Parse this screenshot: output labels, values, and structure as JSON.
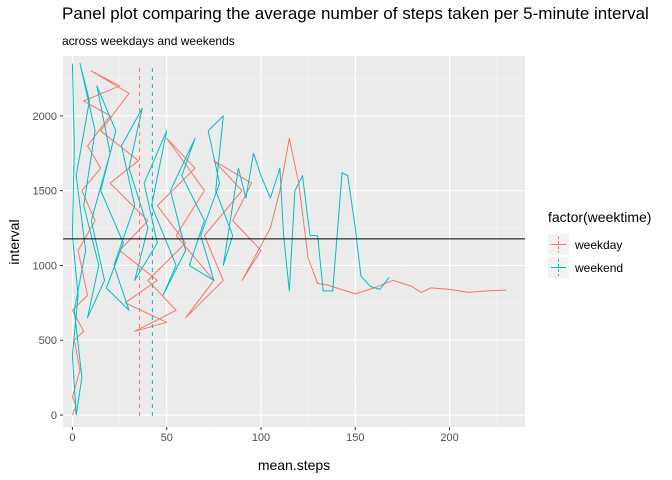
{
  "chart_data": {
    "type": "line",
    "title": "Panel plot comparing the average number of steps taken per 5-minute interval",
    "subtitle": "across weekdays and weekends",
    "xlabel": "mean.steps",
    "ylabel": "interval",
    "xlim": [
      -5,
      240
    ],
    "ylim": [
      -80,
      2400
    ],
    "x_ticks": [
      0,
      50,
      100,
      150,
      200
    ],
    "y_ticks": [
      0,
      500,
      1000,
      1500,
      2000
    ],
    "grid": true,
    "legend": {
      "title": "factor(weektime)",
      "placement": "right"
    },
    "hline": 1177.5,
    "series": [
      {
        "name": "weekday",
        "color": "#F8766D",
        "mean_vline": 35.6,
        "points": [
          [
            0,
            0
          ],
          [
            2,
            60
          ],
          [
            0,
            120
          ],
          [
            4,
            300
          ],
          [
            1,
            500
          ],
          [
            6,
            560
          ],
          [
            0,
            700
          ],
          [
            8,
            800
          ],
          [
            3,
            1100
          ],
          [
            12,
            1300
          ],
          [
            5,
            1500
          ],
          [
            15,
            1650
          ],
          [
            8,
            1800
          ],
          [
            20,
            2000
          ],
          [
            6,
            2100
          ],
          [
            25,
            2200
          ],
          [
            10,
            2300
          ],
          [
            30,
            2150
          ],
          [
            15,
            1900
          ],
          [
            35,
            1700
          ],
          [
            20,
            1550
          ],
          [
            40,
            1300
          ],
          [
            25,
            1100
          ],
          [
            45,
            900
          ],
          [
            28,
            750
          ],
          [
            50,
            620
          ],
          [
            33,
            560
          ],
          [
            55,
            700
          ],
          [
            40,
            900
          ],
          [
            60,
            1150
          ],
          [
            45,
            1400
          ],
          [
            65,
            1650
          ],
          [
            50,
            1850
          ],
          [
            70,
            1500
          ],
          [
            55,
            1200
          ],
          [
            75,
            900
          ],
          [
            60,
            650
          ],
          [
            80,
            900
          ],
          [
            70,
            1200
          ],
          [
            90,
            1500
          ],
          [
            75,
            1700
          ],
          [
            95,
            1550
          ],
          [
            85,
            1300
          ],
          [
            100,
            1100
          ],
          [
            90,
            900
          ],
          [
            105,
            1250
          ],
          [
            110,
            1500
          ],
          [
            115,
            1850
          ],
          [
            120,
            1550
          ],
          [
            125,
            1050
          ],
          [
            130,
            880
          ],
          [
            135,
            870
          ],
          [
            140,
            850
          ],
          [
            150,
            810
          ],
          [
            160,
            850
          ],
          [
            170,
            900
          ],
          [
            180,
            860
          ],
          [
            185,
            820
          ],
          [
            190,
            850
          ],
          [
            200,
            840
          ],
          [
            210,
            820
          ],
          [
            220,
            830
          ],
          [
            230,
            835
          ]
        ]
      },
      {
        "name": "weekend",
        "color": "#00BFC4",
        "mean_vline": 42.4,
        "points": [
          [
            0,
            2350
          ],
          [
            1,
            1800
          ],
          [
            0,
            1200
          ],
          [
            3,
            800
          ],
          [
            0,
            400
          ],
          [
            2,
            0
          ],
          [
            5,
            250
          ],
          [
            1,
            700
          ],
          [
            7,
            1100
          ],
          [
            2,
            1600
          ],
          [
            9,
            2100
          ],
          [
            4,
            2350
          ],
          [
            12,
            1900
          ],
          [
            6,
            1400
          ],
          [
            14,
            1000
          ],
          [
            8,
            650
          ],
          [
            17,
            900
          ],
          [
            10,
            1300
          ],
          [
            20,
            1750
          ],
          [
            13,
            2200
          ],
          [
            23,
            1900
          ],
          [
            15,
            1500
          ],
          [
            27,
            1150
          ],
          [
            18,
            850
          ],
          [
            30,
            700
          ],
          [
            22,
            1000
          ],
          [
            33,
            1400
          ],
          [
            26,
            1800
          ],
          [
            37,
            2050
          ],
          [
            30,
            1650
          ],
          [
            40,
            1250
          ],
          [
            33,
            900
          ],
          [
            45,
            1150
          ],
          [
            38,
            1550
          ],
          [
            50,
            1900
          ],
          [
            42,
            1400
          ],
          [
            55,
            1000
          ],
          [
            48,
            800
          ],
          [
            60,
            1100
          ],
          [
            52,
            1500
          ],
          [
            65,
            1850
          ],
          [
            58,
            1600
          ],
          [
            70,
            1300
          ],
          [
            62,
            1000
          ],
          [
            75,
            900
          ],
          [
            68,
            1200
          ],
          [
            78,
            1550
          ],
          [
            72,
            1900
          ],
          [
            80,
            2000
          ],
          [
            76,
            1500
          ],
          [
            85,
            1200
          ],
          [
            80,
            1000
          ],
          [
            88,
            1650
          ],
          [
            92,
            1450
          ],
          [
            96,
            1750
          ],
          [
            100,
            1600
          ],
          [
            105,
            1450
          ],
          [
            110,
            1650
          ],
          [
            112,
            1200
          ],
          [
            115,
            830
          ],
          [
            118,
            1500
          ],
          [
            122,
            1600
          ],
          [
            126,
            1200
          ],
          [
            130,
            1200
          ],
          [
            133,
            830
          ],
          [
            138,
            830
          ],
          [
            143,
            1620
          ],
          [
            146,
            1600
          ],
          [
            150,
            1250
          ],
          [
            153,
            930
          ],
          [
            158,
            860
          ],
          [
            163,
            840
          ],
          [
            168,
            920
          ]
        ]
      }
    ]
  }
}
